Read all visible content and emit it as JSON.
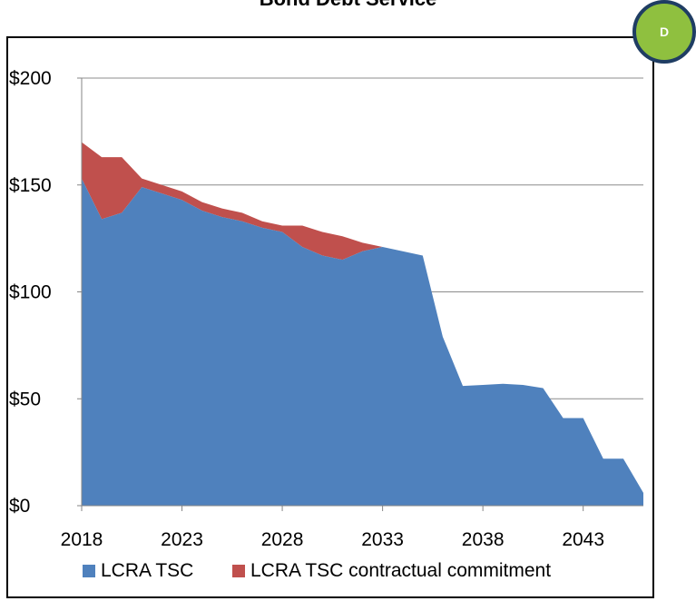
{
  "page": {
    "title": "Bond Debt Service",
    "badge": "D"
  },
  "colors": {
    "lcra_tsc": "#4f81bd",
    "contractual": "#c0504d",
    "gridline": "#8c8c8c",
    "badge_fill": "#8fc03f",
    "badge_border": "#1f3d63"
  },
  "chart_data": {
    "type": "area",
    "stacked": true,
    "title": "Bond Debt Service",
    "x": [
      2018,
      2019,
      2020,
      2021,
      2022,
      2023,
      2024,
      2025,
      2026,
      2027,
      2028,
      2029,
      2030,
      2031,
      2032,
      2033,
      2034,
      2035,
      2036,
      2037,
      2038,
      2039,
      2040,
      2041,
      2042,
      2043,
      2044,
      2045,
      2046
    ],
    "series": [
      {
        "name": "LCRA TSC",
        "values": [
          153,
          134,
          137,
          149,
          146,
          143,
          138,
          135,
          133,
          130,
          128,
          121,
          117,
          115,
          119,
          121,
          119,
          117,
          79,
          56,
          56.5,
          57,
          56.5,
          55,
          41,
          41,
          22,
          22,
          6
        ]
      },
      {
        "name": "LCRA TSC contractual commitment",
        "values": [
          17,
          29,
          26,
          4,
          4,
          4,
          4,
          4,
          4,
          3,
          3,
          10,
          11,
          11,
          4,
          0,
          0,
          0,
          0,
          0,
          0,
          0,
          0,
          0,
          0,
          0,
          0,
          0,
          0
        ]
      }
    ],
    "ylim": [
      0,
      200
    ],
    "xlim": [
      2018,
      2046
    ],
    "yticks": [
      0,
      50,
      100,
      150,
      200
    ],
    "ytick_labels": [
      "$0",
      "$50",
      "$100",
      "$150",
      "$200"
    ],
    "xticks": [
      2018,
      2023,
      2028,
      2033,
      2038,
      2043
    ],
    "xtick_labels": [
      "2018",
      "2023",
      "2028",
      "2033",
      "2038",
      "2043"
    ],
    "grid": true,
    "legend": "bottom"
  }
}
